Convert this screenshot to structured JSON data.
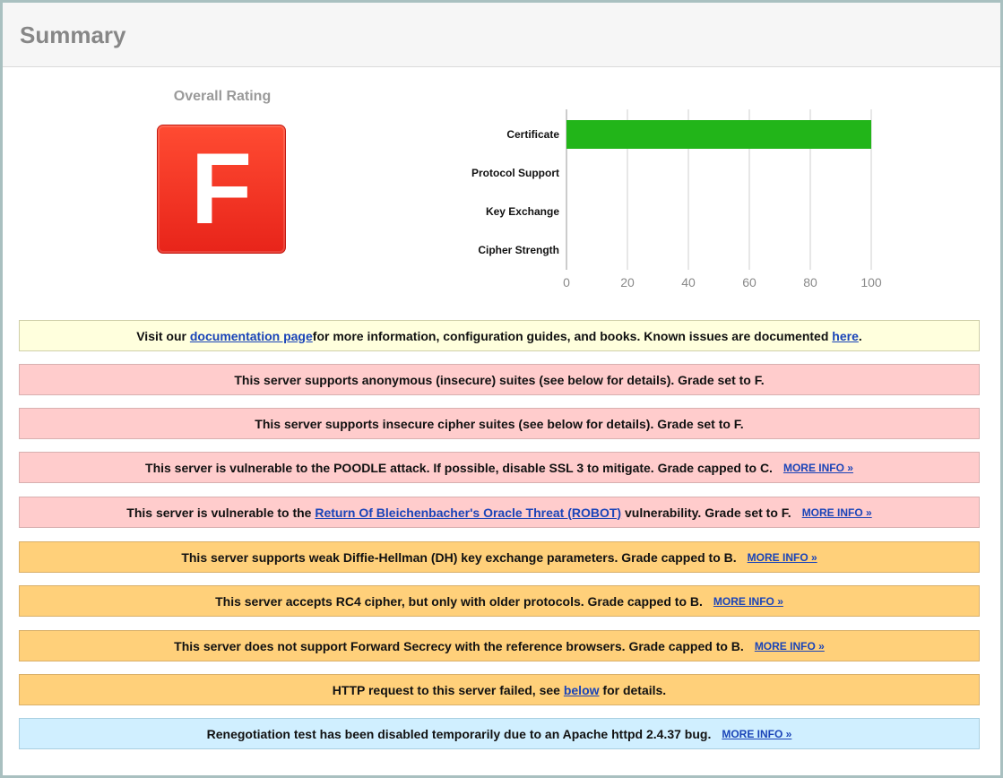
{
  "header": {
    "title": "Summary"
  },
  "rating": {
    "label": "Overall Rating",
    "grade": "F",
    "color": "#f23a22"
  },
  "chart_data": {
    "type": "bar",
    "orientation": "horizontal",
    "categories": [
      "Certificate",
      "Protocol Support",
      "Key Exchange",
      "Cipher Strength"
    ],
    "values": [
      100,
      0,
      0,
      0
    ],
    "xlim": [
      0,
      100
    ],
    "ticks": [
      "0",
      "20",
      "40",
      "60",
      "80",
      "100"
    ],
    "grid": true,
    "bar_color": "#22b519"
  },
  "notices": [
    {
      "color": "yellow",
      "before": "Visit our ",
      "link1": "documentation page",
      "middle": " for more information, configuration guides, and books. Known issues are documented ",
      "link2": "here",
      "after": "."
    },
    {
      "color": "red",
      "text": "This server supports anonymous (insecure) suites (see below for details). Grade set to F."
    },
    {
      "color": "red",
      "text": "This server supports insecure cipher suites (see below for details). Grade set to F."
    },
    {
      "color": "red",
      "text": "This server is vulnerable to the POODLE attack. If possible, disable SSL 3 to mitigate. Grade capped to C.",
      "more": "MORE INFO »"
    },
    {
      "color": "red",
      "before": "This server is vulnerable to the ",
      "link": "Return Of Bleichenbacher's Oracle Threat (ROBOT)",
      "after": " vulnerability. Grade set to F.",
      "more": "MORE INFO »"
    },
    {
      "color": "orange",
      "text": "This server supports weak Diffie-Hellman (DH) key exchange parameters. Grade capped to B.",
      "more": "MORE INFO »"
    },
    {
      "color": "orange",
      "text": "This server accepts RC4 cipher, but only with older protocols. Grade capped to B.",
      "more": "MORE INFO »"
    },
    {
      "color": "orange",
      "text": "This server does not support Forward Secrecy with the reference browsers. Grade capped to B.",
      "more": "MORE INFO »"
    },
    {
      "color": "orange",
      "before": "HTTP request to this server failed, see ",
      "link": "below",
      "after": " for details."
    },
    {
      "color": "blue",
      "text": "Renegotiation test has been disabled temporarily due to an Apache httpd 2.4.37 bug.",
      "more": "MORE INFO »"
    }
  ]
}
